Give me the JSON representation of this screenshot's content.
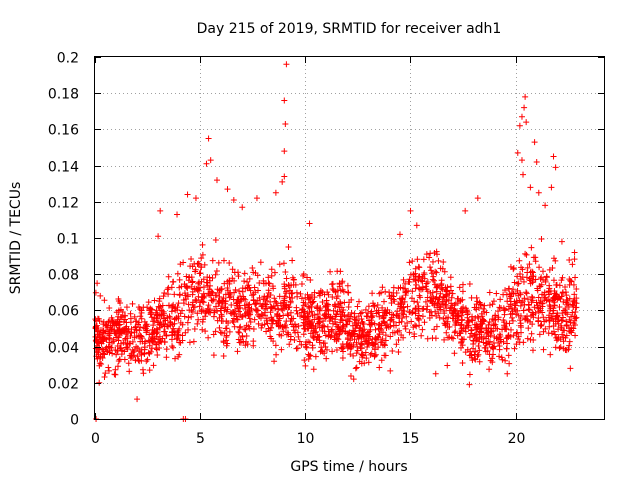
{
  "chart_data": {
    "type": "scatter",
    "title": "Day 215 of 2019, SRMTID for receiver adh1",
    "xlabel": "GPS time / hours",
    "ylabel": "SRMTID / TECUs",
    "xlim": [
      0,
      24.2
    ],
    "ylim": [
      0,
      0.2
    ],
    "x_ticks": [
      0,
      5,
      10,
      15,
      20
    ],
    "x_tick_labels": [
      "0",
      "5",
      "10",
      "15",
      "20"
    ],
    "y_ticks": [
      0,
      0.02,
      0.04,
      0.06,
      0.08,
      0.1,
      0.12,
      0.14,
      0.16,
      0.18,
      0.2
    ],
    "y_tick_labels": [
      "0",
      "0.02",
      "0.04",
      "0.06",
      "0.08",
      "0.1",
      "0.12",
      "0.14",
      "0.16",
      "0.18",
      "0.2"
    ],
    "grid": true,
    "marker": "+",
    "marker_color": "#ff0000",
    "series": [
      {
        "name": "SRMTID",
        "profile_hours": [
          0,
          0.5,
          1,
          1.5,
          2,
          2.5,
          3,
          3.5,
          4,
          4.5,
          5,
          5.5,
          6,
          6.5,
          7,
          7.5,
          8,
          8.5,
          9,
          9.5,
          10,
          10.5,
          11,
          11.5,
          12,
          12.5,
          13,
          13.5,
          14,
          14.5,
          15,
          15.5,
          16,
          16.5,
          17,
          17.5,
          18,
          18.5,
          19,
          19.5,
          20,
          20.5,
          21,
          21.5,
          22,
          22.5,
          22.9
        ],
        "profile_center": [
          0.045,
          0.044,
          0.046,
          0.047,
          0.045,
          0.048,
          0.05,
          0.052,
          0.06,
          0.066,
          0.07,
          0.066,
          0.062,
          0.058,
          0.06,
          0.062,
          0.064,
          0.06,
          0.063,
          0.058,
          0.054,
          0.052,
          0.055,
          0.058,
          0.052,
          0.045,
          0.046,
          0.05,
          0.056,
          0.06,
          0.066,
          0.072,
          0.07,
          0.065,
          0.058,
          0.054,
          0.052,
          0.05,
          0.048,
          0.052,
          0.062,
          0.066,
          0.068,
          0.065,
          0.06,
          0.058,
          0.062
        ],
        "profile_spread": [
          0.012,
          0.011,
          0.012,
          0.012,
          0.013,
          0.013,
          0.014,
          0.014,
          0.016,
          0.017,
          0.018,
          0.017,
          0.017,
          0.016,
          0.016,
          0.016,
          0.017,
          0.016,
          0.017,
          0.016,
          0.015,
          0.014,
          0.015,
          0.015,
          0.014,
          0.012,
          0.012,
          0.013,
          0.014,
          0.015,
          0.016,
          0.016,
          0.016,
          0.015,
          0.014,
          0.014,
          0.014,
          0.014,
          0.014,
          0.014,
          0.016,
          0.018,
          0.02,
          0.019,
          0.017,
          0.016,
          0.016
        ],
        "point_count": 2300,
        "outliers": [
          {
            "x": 0.05,
            "y": 0.0
          },
          {
            "x": 4.2,
            "y": 0.0
          },
          {
            "x": 4.3,
            "y": 0.0
          },
          {
            "x": 0.1,
            "y": 0.075
          },
          {
            "x": 0.2,
            "y": 0.02
          },
          {
            "x": 0.25,
            "y": 0.068
          },
          {
            "x": 2.0,
            "y": 0.011
          },
          {
            "x": 2.6,
            "y": 0.027
          },
          {
            "x": 3.1,
            "y": 0.115
          },
          {
            "x": 3.0,
            "y": 0.101
          },
          {
            "x": 3.9,
            "y": 0.113
          },
          {
            "x": 4.4,
            "y": 0.124
          },
          {
            "x": 4.8,
            "y": 0.122
          },
          {
            "x": 5.3,
            "y": 0.141
          },
          {
            "x": 5.4,
            "y": 0.155
          },
          {
            "x": 5.5,
            "y": 0.143
          },
          {
            "x": 5.8,
            "y": 0.132
          },
          {
            "x": 6.3,
            "y": 0.127
          },
          {
            "x": 6.6,
            "y": 0.121
          },
          {
            "x": 7.0,
            "y": 0.117
          },
          {
            "x": 7.7,
            "y": 0.122
          },
          {
            "x": 8.6,
            "y": 0.125
          },
          {
            "x": 8.9,
            "y": 0.131
          },
          {
            "x": 9.0,
            "y": 0.134
          },
          {
            "x": 9.0,
            "y": 0.148
          },
          {
            "x": 9.05,
            "y": 0.163
          },
          {
            "x": 9.0,
            "y": 0.176
          },
          {
            "x": 9.1,
            "y": 0.196
          },
          {
            "x": 9.2,
            "y": 0.095
          },
          {
            "x": 10.2,
            "y": 0.108
          },
          {
            "x": 12.3,
            "y": 0.022
          },
          {
            "x": 13.3,
            "y": 0.035
          },
          {
            "x": 14.5,
            "y": 0.102
          },
          {
            "x": 15.0,
            "y": 0.115
          },
          {
            "x": 15.3,
            "y": 0.107
          },
          {
            "x": 16.2,
            "y": 0.025
          },
          {
            "x": 17.6,
            "y": 0.115
          },
          {
            "x": 18.2,
            "y": 0.122
          },
          {
            "x": 17.8,
            "y": 0.019
          },
          {
            "x": 19.6,
            "y": 0.025
          },
          {
            "x": 20.1,
            "y": 0.147
          },
          {
            "x": 20.2,
            "y": 0.162
          },
          {
            "x": 20.3,
            "y": 0.167
          },
          {
            "x": 20.4,
            "y": 0.172
          },
          {
            "x": 20.45,
            "y": 0.178
          },
          {
            "x": 20.5,
            "y": 0.164
          },
          {
            "x": 20.3,
            "y": 0.143
          },
          {
            "x": 20.35,
            "y": 0.135
          },
          {
            "x": 20.7,
            "y": 0.128
          },
          {
            "x": 20.9,
            "y": 0.153
          },
          {
            "x": 21.0,
            "y": 0.142
          },
          {
            "x": 21.1,
            "y": 0.125
          },
          {
            "x": 21.4,
            "y": 0.118
          },
          {
            "x": 21.8,
            "y": 0.145
          },
          {
            "x": 21.9,
            "y": 0.139
          },
          {
            "x": 21.7,
            "y": 0.128
          },
          {
            "x": 22.2,
            "y": 0.098
          },
          {
            "x": 22.8,
            "y": 0.092
          },
          {
            "x": 22.6,
            "y": 0.028
          }
        ]
      }
    ]
  }
}
